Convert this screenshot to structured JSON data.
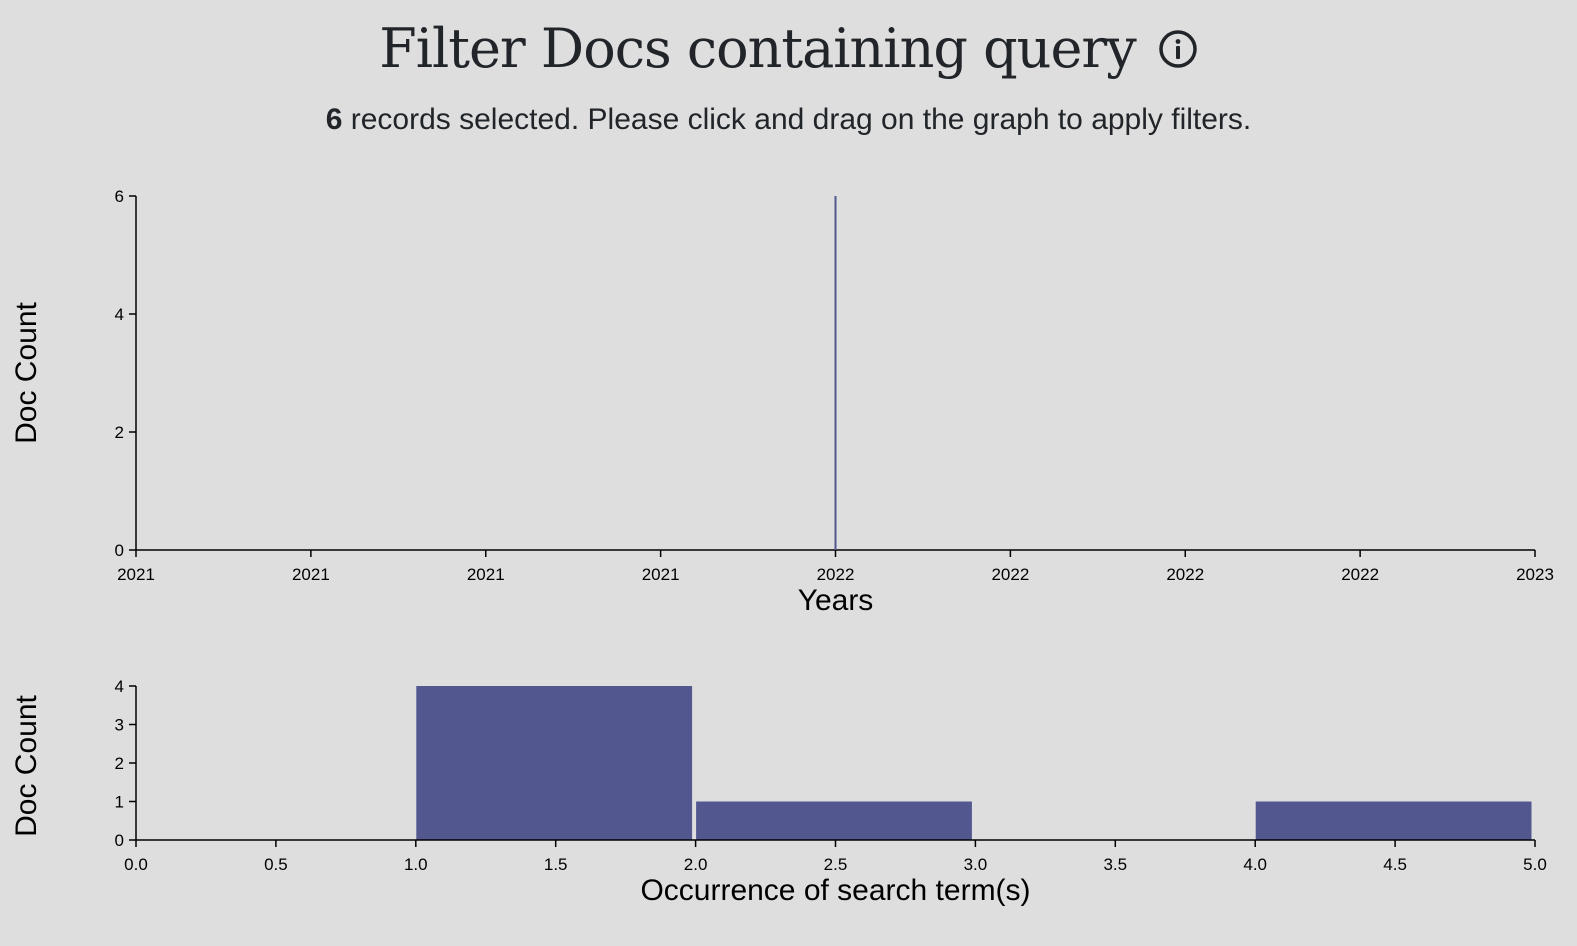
{
  "header": {
    "title": "Filter Docs containing query",
    "info_icon": "info-circle-icon",
    "selected_count": "6",
    "subtitle_rest": " records selected. Please click and drag on the graph to apply filters."
  },
  "colors": {
    "bar": "#52588f",
    "axis": "#000000",
    "background": "#dedede"
  },
  "chart_data": [
    {
      "type": "bar",
      "xlabel": "Years",
      "ylabel": "Doc Count",
      "ylim": [
        0,
        6
      ],
      "yticks": [
        0,
        2,
        4,
        6
      ],
      "xticks": [
        "2021",
        "2021",
        "2021",
        "2021",
        "2022",
        "2022",
        "2022",
        "2022",
        "2023"
      ],
      "series": [
        {
          "x": "2022",
          "value": 6
        }
      ],
      "grid": false
    },
    {
      "type": "bar",
      "xlabel": "Occurrence of search term(s)",
      "ylabel": "Doc Count",
      "xlim": [
        0,
        5
      ],
      "ylim": [
        0,
        4
      ],
      "yticks": [
        0,
        1,
        2,
        3,
        4
      ],
      "xticks": [
        "0.0",
        "0.5",
        "1.0",
        "1.5",
        "2.0",
        "2.5",
        "3.0",
        "3.5",
        "4.0",
        "4.5",
        "5.0"
      ],
      "bins": [
        {
          "x0": 1,
          "x1": 2,
          "value": 4
        },
        {
          "x0": 2,
          "x1": 3,
          "value": 1
        },
        {
          "x0": 4,
          "x1": 5,
          "value": 1
        }
      ],
      "grid": false
    }
  ]
}
